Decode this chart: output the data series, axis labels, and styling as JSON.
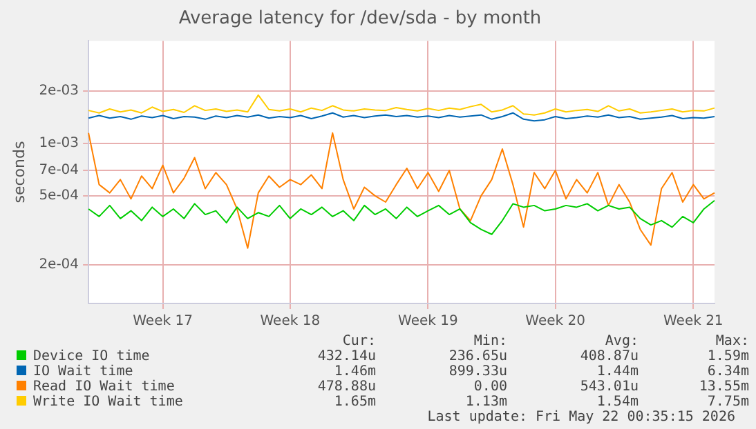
{
  "chart_data": {
    "type": "line",
    "title": "Average latency for /dev/sda - by month",
    "ylabel": "seconds",
    "log": "y",
    "grid": true,
    "legend": "bottom",
    "categories": [
      null,
      null,
      null,
      null,
      null,
      null,
      null,
      "Week 17",
      null,
      null,
      null,
      null,
      null,
      null,
      null,
      null,
      null,
      null,
      null,
      "Week 18",
      null,
      null,
      null,
      null,
      null,
      null,
      null,
      null,
      null,
      null,
      null,
      null,
      "Week 19",
      null,
      null,
      null,
      null,
      null,
      null,
      null,
      null,
      null,
      null,
      null,
      "Week 20",
      null,
      null,
      null,
      null,
      null,
      null,
      null,
      null,
      null,
      null,
      null,
      null,
      "Week 21",
      null,
      null
    ],
    "ylim": [
      0.00012,
      0.0039
    ],
    "yticks": [
      {
        "value": 0.0002,
        "label": "2e-04"
      },
      {
        "value": 0.0005,
        "label": "5e-04"
      },
      {
        "value": 0.0007,
        "label": "7e-04"
      },
      {
        "value": 0.001,
        "label": "1e-03"
      },
      {
        "value": 0.002,
        "label": "2e-03"
      }
    ],
    "series": [
      {
        "name": "Device IO time",
        "color": "#00cc00",
        "values": [
          0.00042,
          0.00038,
          0.00044,
          0.00037,
          0.00041,
          0.00036,
          0.00043,
          0.00038,
          0.00042,
          0.00037,
          0.00045,
          0.00039,
          0.00041,
          0.00035,
          0.00043,
          0.00037,
          0.0004,
          0.00038,
          0.00044,
          0.00037,
          0.00042,
          0.00039,
          0.00043,
          0.00038,
          0.00041,
          0.00036,
          0.00044,
          0.00039,
          0.00042,
          0.00037,
          0.00043,
          0.00038,
          0.00041,
          0.00044,
          0.00039,
          0.00042,
          0.00035,
          0.00032,
          0.0003,
          0.00036,
          0.00045,
          0.00043,
          0.00044,
          0.00041,
          0.00042,
          0.00044,
          0.00043,
          0.00045,
          0.00041,
          0.00044,
          0.00042,
          0.00043,
          0.00037,
          0.00034,
          0.00036,
          0.00033,
          0.00038,
          0.00035,
          0.00042,
          0.00047
        ]
      },
      {
        "name": "IO Wait time",
        "color": "#0066b3",
        "values": [
          0.0014,
          0.00145,
          0.0014,
          0.00143,
          0.00138,
          0.00144,
          0.00141,
          0.00145,
          0.00139,
          0.00143,
          0.00142,
          0.00138,
          0.00144,
          0.00141,
          0.00145,
          0.00142,
          0.00146,
          0.0014,
          0.00143,
          0.00141,
          0.00145,
          0.00139,
          0.00144,
          0.0015,
          0.00142,
          0.00145,
          0.00141,
          0.00144,
          0.00146,
          0.00143,
          0.00145,
          0.00142,
          0.00144,
          0.00141,
          0.00145,
          0.00142,
          0.00144,
          0.00146,
          0.00138,
          0.00143,
          0.0015,
          0.00138,
          0.00135,
          0.00137,
          0.00143,
          0.00139,
          0.00141,
          0.00144,
          0.00142,
          0.00146,
          0.00141,
          0.00143,
          0.00138,
          0.0014,
          0.00142,
          0.00145,
          0.00139,
          0.00141,
          0.0014,
          0.00143
        ]
      },
      {
        "name": "Read IO Wait time",
        "color": "#ff8000",
        "values": [
          0.00115,
          0.00058,
          0.00052,
          0.00062,
          0.00048,
          0.00065,
          0.00055,
          0.00075,
          0.00052,
          0.00063,
          0.00083,
          0.00055,
          0.00068,
          0.00058,
          0.00042,
          0.00025,
          0.00052,
          0.00065,
          0.00056,
          0.00062,
          0.00058,
          0.00066,
          0.00055,
          0.00115,
          0.00062,
          0.00042,
          0.00056,
          0.0005,
          0.00046,
          0.00058,
          0.00072,
          0.00055,
          0.00068,
          0.00053,
          0.0007,
          0.00042,
          0.00036,
          0.0005,
          0.00062,
          0.00093,
          0.00058,
          0.00033,
          0.00068,
          0.00055,
          0.0007,
          0.00048,
          0.00062,
          0.00052,
          0.00068,
          0.00044,
          0.00058,
          0.00046,
          0.00032,
          0.00026,
          0.00055,
          0.00068,
          0.00046,
          0.00058,
          0.00048,
          0.00052
        ]
      },
      {
        "name": "Write IO Wait time",
        "color": "#ffcc00",
        "values": [
          0.00155,
          0.0015,
          0.00158,
          0.00152,
          0.00156,
          0.0015,
          0.00162,
          0.00153,
          0.00157,
          0.00151,
          0.00165,
          0.00155,
          0.00158,
          0.00153,
          0.00156,
          0.00152,
          0.0019,
          0.00157,
          0.00154,
          0.00158,
          0.00152,
          0.0016,
          0.00155,
          0.00165,
          0.00156,
          0.00154,
          0.00158,
          0.00156,
          0.00155,
          0.00161,
          0.00157,
          0.00154,
          0.00159,
          0.00155,
          0.0016,
          0.00157,
          0.00163,
          0.00168,
          0.00152,
          0.00156,
          0.00165,
          0.00148,
          0.00146,
          0.0015,
          0.00158,
          0.00152,
          0.00155,
          0.00157,
          0.00153,
          0.00165,
          0.00154,
          0.00158,
          0.0015,
          0.00152,
          0.00155,
          0.00158,
          0.00152,
          0.00155,
          0.00154,
          0.0016
        ]
      }
    ],
    "annotations": [
      "Cur:",
      "Min:",
      "Avg:",
      "Max:",
      "432.14u",
      "236.65u",
      "408.87u",
      "1.59m",
      "1.46m",
      "899.33u",
      "1.44m",
      "6.34m",
      "478.88u",
      "0.00",
      "543.01u",
      "13.55m",
      "1.65m",
      "1.13m",
      "1.54m",
      "7.75m",
      "Last update: Fri May 22 00:35:15 2026"
    ]
  }
}
